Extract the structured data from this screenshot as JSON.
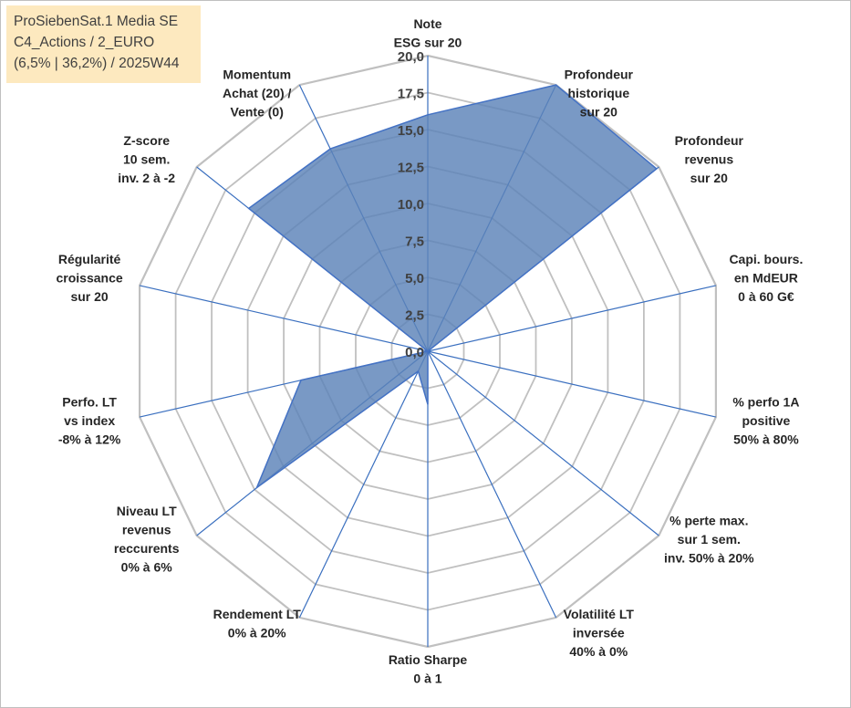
{
  "title": {
    "line1": "ProSiebenSat.1 Media SE",
    "line2": "C4_Actions / 2_EURO",
    "line3": "(6,5% | 36,2%) / 2025W44"
  },
  "colors": {
    "grid": "#c0c0c0",
    "axis": "#3a6fbf",
    "fill": "#5b83b8",
    "stroke": "#4472c4"
  },
  "chart_data": {
    "type": "radar",
    "title": "ProSiebenSat.1 Media SE",
    "rmin": 0,
    "rmax": 20,
    "step": 2.5,
    "tick_labels": [
      "0,0",
      "2,5",
      "5,0",
      "7,5",
      "10,0",
      "12,5",
      "15,0",
      "17,5",
      "20,0"
    ],
    "categories": [
      [
        "Note",
        "ESG sur 20"
      ],
      [
        "Profondeur",
        "historique",
        "sur 20"
      ],
      [
        "Profondeur",
        "revenus",
        "sur 20"
      ],
      [
        "Capi. bours.",
        "en MdEUR",
        "0 à 60 G€"
      ],
      [
        "% perfo 1A",
        "positive",
        "50% à 80%"
      ],
      [
        "% perte max.",
        "sur 1 sem.",
        "inv. 50% à 20%"
      ],
      [
        "Volatilité LT",
        "inversée",
        "40% à 0%"
      ],
      [
        "Ratio Sharpe",
        "0 à 1"
      ],
      [
        "Rendement LT",
        "0% à 20%"
      ],
      [
        "Niveau LT",
        "revenus",
        "reccurents",
        "0% à 6%"
      ],
      [
        "Perfo. LT",
        "vs index",
        "-8% à 12%"
      ],
      [
        "Régularité",
        "croissance",
        "sur 20"
      ],
      [
        "Z-score",
        "10 sem.",
        "inv. 2 à -2"
      ],
      [
        "Momentum",
        "Achat (20) /",
        "Vente (0)"
      ]
    ],
    "series": [
      {
        "name": "ProSiebenSat.1 Media SE",
        "values": [
          16.0,
          20.0,
          19.8,
          0.0,
          0.0,
          0.0,
          0.0,
          3.6,
          1.5,
          14.8,
          8.8,
          0.0,
          15.5,
          15.2
        ]
      }
    ]
  }
}
